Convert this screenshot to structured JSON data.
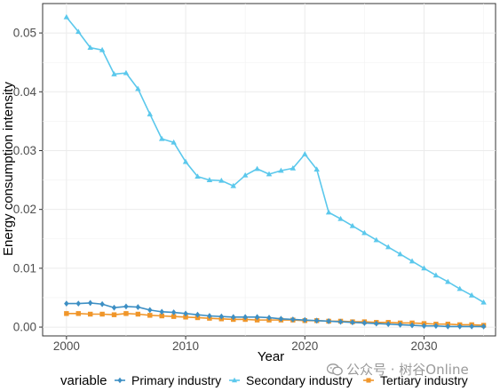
{
  "chart_data": {
    "type": "line",
    "xlabel": "Year",
    "ylabel": "Energy consumption intensity",
    "xlim": [
      1998,
      2036
    ],
    "ylim": [
      -0.0015,
      0.055
    ],
    "xticks": [
      "2000",
      "2010",
      "2020",
      "2030"
    ],
    "yticks": [
      "0.00",
      "0.01",
      "0.02",
      "0.03",
      "0.04",
      "0.05"
    ],
    "grid": true,
    "legend_position": "bottom",
    "legend_title": "variable",
    "x": [
      2000,
      2001,
      2002,
      2003,
      2004,
      2005,
      2006,
      2007,
      2008,
      2009,
      2010,
      2011,
      2012,
      2013,
      2014,
      2015,
      2016,
      2017,
      2018,
      2019,
      2020,
      2021,
      2022,
      2023,
      2024,
      2025,
      2026,
      2027,
      2028,
      2029,
      2030,
      2031,
      2032,
      2033,
      2034,
      2035
    ],
    "series": [
      {
        "name": "Primary industry",
        "color": "#3d8fc4",
        "marker": "diamond",
        "values": [
          0.004,
          0.004,
          0.0041,
          0.0039,
          0.0033,
          0.0035,
          0.0034,
          0.0029,
          0.0026,
          0.0025,
          0.0023,
          0.0021,
          0.0019,
          0.0018,
          0.0017,
          0.0017,
          0.0017,
          0.0016,
          0.0014,
          0.0013,
          0.0012,
          0.0011,
          0.001,
          0.0009,
          0.0008,
          0.0007,
          0.0006,
          0.0005,
          0.0004,
          0.0003,
          0.0002,
          0.0002,
          0.0001,
          0.0001,
          0.0001,
          0.0001
        ]
      },
      {
        "name": "Secondary industry",
        "color": "#5bc8ec",
        "marker": "triangle",
        "values": [
          0.0527,
          0.0502,
          0.0475,
          0.0471,
          0.043,
          0.0432,
          0.0405,
          0.0362,
          0.032,
          0.0314,
          0.0281,
          0.0256,
          0.025,
          0.0249,
          0.024,
          0.0258,
          0.0269,
          0.026,
          0.0266,
          0.027,
          0.0294,
          0.0268,
          0.0195,
          0.0184,
          0.0172,
          0.016,
          0.0148,
          0.0136,
          0.0124,
          0.0112,
          0.01,
          0.0088,
          0.0077,
          0.0065,
          0.0054,
          0.0042
        ]
      },
      {
        "name": "Tertiary industry",
        "color": "#f0962a",
        "marker": "square",
        "values": [
          0.0023,
          0.0023,
          0.0022,
          0.0022,
          0.0021,
          0.0023,
          0.0022,
          0.002,
          0.0019,
          0.0018,
          0.0017,
          0.0016,
          0.0015,
          0.0014,
          0.0013,
          0.0013,
          0.0012,
          0.0012,
          0.0012,
          0.0012,
          0.0011,
          0.0011,
          0.001,
          0.001,
          0.0009,
          0.0009,
          0.0008,
          0.0008,
          0.0007,
          0.0007,
          0.0006,
          0.0005,
          0.0005,
          0.0004,
          0.0004,
          0.0003
        ]
      }
    ]
  },
  "watermark": {
    "text": "公众号 · 树谷Online"
  }
}
